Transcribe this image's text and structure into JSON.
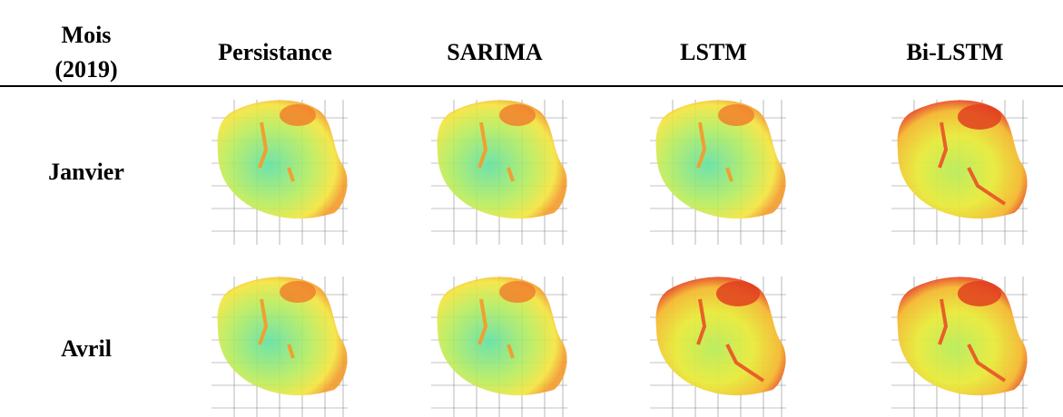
{
  "table": {
    "header": [
      "Mois (2019)",
      "Persistance",
      "SARIMA",
      "LSTM",
      "Bi-LSTM"
    ],
    "rows": [
      [
        "Janvier"
      ],
      [
        "Avril"
      ]
    ]
  }
}
